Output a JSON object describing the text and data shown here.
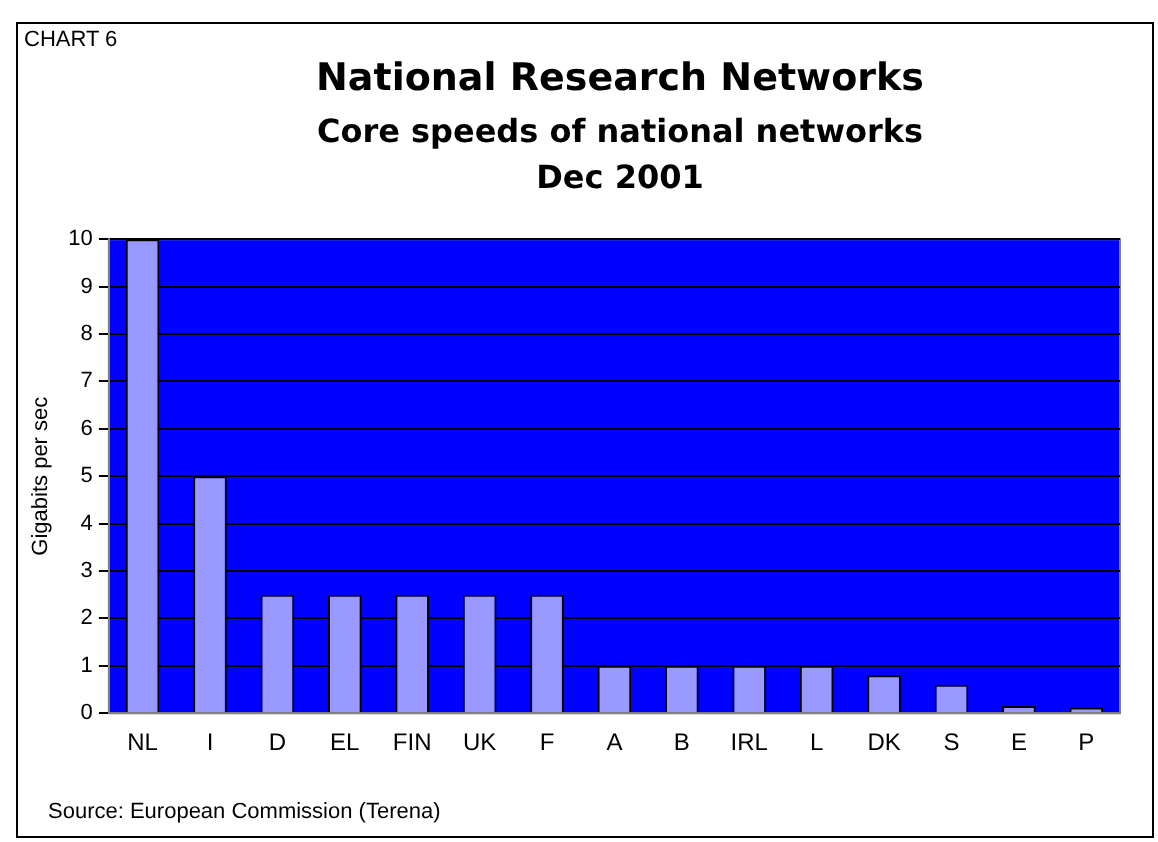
{
  "chart_data": {
    "type": "bar",
    "title": "National Research Networks",
    "subtitle": "Core speeds of national networks Dec 2001",
    "ylabel": "Gigabits per sec",
    "annotations": [
      "CHART 6",
      "Source: European Commission (Terena)"
    ],
    "categories": [
      "NL",
      "I",
      "D",
      "EL",
      "FIN",
      "UK",
      "F",
      "A",
      "B",
      "IRL",
      "L",
      "DK",
      "S",
      "E",
      "P"
    ],
    "values": [
      10,
      5,
      2.5,
      2.5,
      2.5,
      2.5,
      2.5,
      1,
      1,
      1,
      1,
      0.8,
      0.6,
      0.15,
      0.12
    ],
    "color": "#9999ff",
    "ylim": [
      0,
      10
    ],
    "yticks": [
      0,
      1,
      2,
      3,
      4,
      5,
      6,
      7,
      8,
      9,
      10
    ],
    "grid": "y",
    "legend": false
  }
}
